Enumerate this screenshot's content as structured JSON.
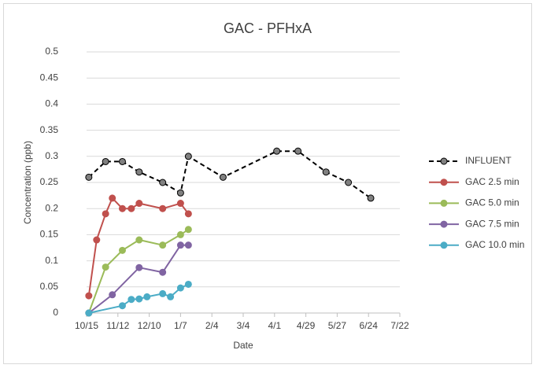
{
  "chart_data": {
    "type": "line",
    "title": "GAC - PFHxA",
    "xlabel": "Date",
    "ylabel": "Concentration (ppb)",
    "xlim": [
      "10/15",
      "7/22"
    ],
    "xticks": [
      "10/15",
      "11/12",
      "12/10",
      "1/7",
      "2/4",
      "3/4",
      "4/1",
      "4/29",
      "5/27",
      "6/24",
      "7/22"
    ],
    "ylim": [
      0,
      0.5
    ],
    "yticks": [
      0,
      0.05,
      0.1,
      0.15,
      0.2,
      0.25,
      0.3,
      0.35,
      0.4,
      0.45,
      0.5
    ],
    "grid": true,
    "legend": "right",
    "series": [
      {
        "name": "INFLUENT",
        "color": "#000000",
        "marker_color": "#808080",
        "line_style": "dashed",
        "x": [
          "10/17",
          "11/1",
          "11/16",
          "12/1",
          "12/22",
          "1/7",
          "1/14",
          "2/14",
          "4/3",
          "4/22",
          "5/17",
          "6/6",
          "6/26"
        ],
        "values": [
          0.26,
          0.29,
          0.29,
          0.27,
          0.25,
          0.23,
          0.3,
          0.26,
          0.31,
          0.31,
          0.27,
          0.25,
          0.22
        ]
      },
      {
        "name": "GAC 2.5 min",
        "color": "#c0504d",
        "marker_color": "#c0504d",
        "line_style": "solid",
        "x": [
          "10/17",
          "10/24",
          "11/1",
          "11/7",
          "11/16",
          "11/24",
          "12/1",
          "12/22",
          "1/7",
          "1/14"
        ],
        "values": [
          0.033,
          0.14,
          0.19,
          0.22,
          0.2,
          0.2,
          0.21,
          0.2,
          0.21,
          0.19
        ]
      },
      {
        "name": "GAC 5.0 min",
        "color": "#9bbb59",
        "marker_color": "#9bbb59",
        "line_style": "solid",
        "x": [
          "10/17",
          "11/1",
          "11/16",
          "12/1",
          "12/22",
          "1/7",
          "1/14"
        ],
        "values": [
          0,
          0.088,
          0.12,
          0.14,
          0.13,
          0.15,
          0.16
        ]
      },
      {
        "name": "GAC 7.5 min",
        "color": "#8064a2",
        "marker_color": "#8064a2",
        "line_style": "solid",
        "x": [
          "10/17",
          "11/7",
          "12/1",
          "12/22",
          "1/7",
          "1/14"
        ],
        "values": [
          0,
          0.035,
          0.087,
          0.078,
          0.13,
          0.13
        ]
      },
      {
        "name": "GAC 10.0 min",
        "color": "#4bacc6",
        "marker_color": "#4bacc6",
        "line_style": "solid",
        "x": [
          "10/17",
          "11/16",
          "11/24",
          "12/1",
          "12/8",
          "12/22",
          "12/29",
          "1/7",
          "1/14"
        ],
        "values": [
          0,
          0.014,
          0.026,
          0.027,
          0.031,
          0.037,
          0.031,
          0.048,
          0.055
        ]
      }
    ]
  }
}
